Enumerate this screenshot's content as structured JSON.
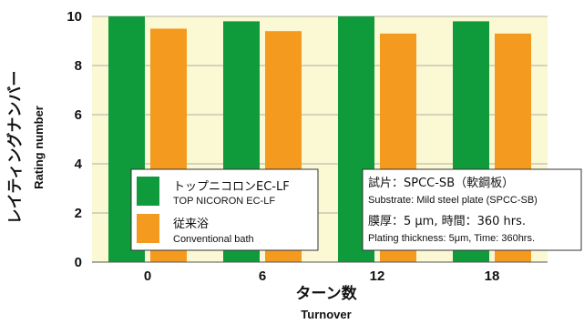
{
  "chart_data": {
    "type": "bar",
    "categories": [
      "0",
      "6",
      "12",
      "18"
    ],
    "series": [
      {
        "name": "トップニコロンEC-LF",
        "name_en": "TOP NICORON EC-LF",
        "color": "#0f9a3c",
        "values": [
          10.0,
          9.8,
          10.0,
          9.8
        ]
      },
      {
        "name": "従来浴",
        "name_en": "Conventional bath",
        "color": "#f39a1f",
        "values": [
          9.5,
          9.4,
          9.3,
          9.3
        ]
      }
    ],
    "xlabel": "ターン数",
    "xlabel_en": "Turnover",
    "ylabel": "レイティングナンバー",
    "ylabel_en": "Rating number",
    "ylim": [
      0,
      10
    ],
    "yticks": [
      "0",
      "2",
      "4",
      "6",
      "8",
      "10"
    ],
    "ytick_values": [
      0,
      2,
      4,
      6,
      8,
      10
    ],
    "grid": true,
    "legend_position": "bottom-left",
    "plot_background": "#fbf8d4",
    "annotation": {
      "line1_jp": "試片：SPCC-SB（軟鋼板）",
      "line2_en": "Substrate:  Mild steel plate (SPCC-SB)",
      "line3_jp": "膜厚：5 μm, 時間：360 hrs.",
      "line4_en": "Plating thickness: 5μm, Time: 360hrs."
    }
  }
}
